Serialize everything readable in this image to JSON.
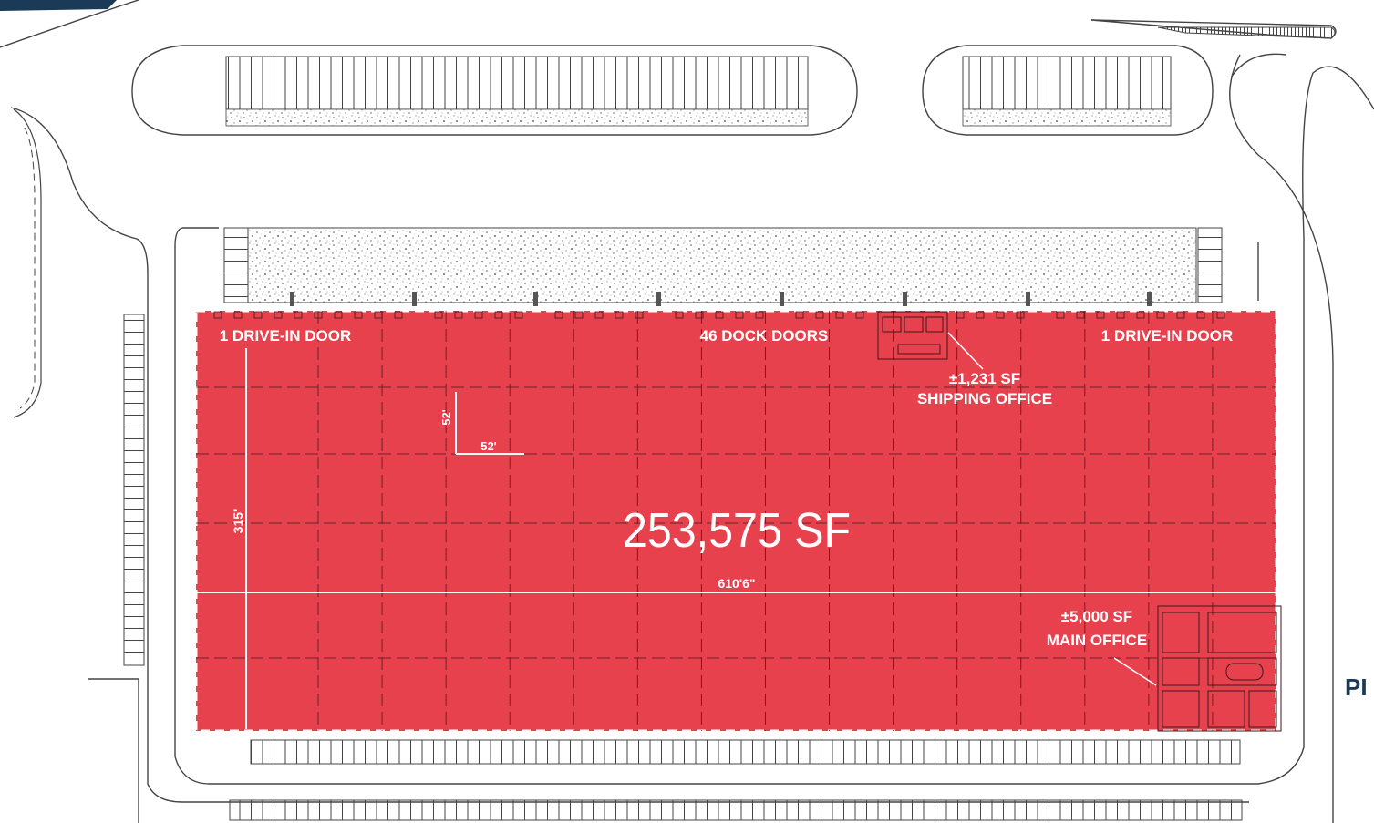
{
  "building": {
    "total_area": "253,575 SF",
    "fill_color": "#e8414e",
    "grid_columns": 16,
    "grid_rows": 6
  },
  "labels": {
    "drive_in_left": "1 DRIVE-IN DOOR",
    "drive_in_right": "1 DRIVE-IN DOOR",
    "dock_doors": "46 DOCK DOORS",
    "shipping_office_area": "±1,231 SF",
    "shipping_office_name": "SHIPPING  OFFICE",
    "main_office_area": "±5,000 SF",
    "main_office_name": "MAIN OFFICE",
    "building_width": "610'6\"",
    "building_depth": "315'",
    "bay_width": "52'",
    "bay_depth": "52'",
    "edge_fragment": "PI"
  },
  "colors": {
    "accent_dark": "#1b3a57",
    "line": "#333333",
    "dimension": "#ffffff"
  }
}
